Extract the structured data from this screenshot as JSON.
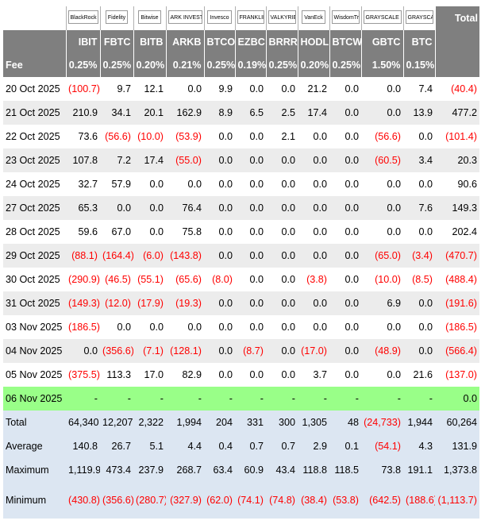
{
  "header": {
    "total_label": "Total",
    "fee_label": "Fee",
    "issuers": [
      {
        "logo": "BlackRock",
        "ticker": "IBIT",
        "fee": "0.25%"
      },
      {
        "logo": "Fidelity",
        "ticker": "FBTC",
        "fee": "0.25%"
      },
      {
        "logo": "Bitwise",
        "ticker": "BITB",
        "fee": "0.20%"
      },
      {
        "logo": "ARK INVEST",
        "ticker": "ARKB",
        "fee": "0.21%"
      },
      {
        "logo": "Invesco",
        "ticker": "BTCO",
        "fee": "0.25%"
      },
      {
        "logo": "FRANKLIN TEMPLETON",
        "ticker": "EZBC",
        "fee": "0.19%"
      },
      {
        "logo": "VALKYRIE",
        "ticker": "BRRR",
        "fee": "0.25%"
      },
      {
        "logo": "VanEck",
        "ticker": "HODL",
        "fee": "0.20%"
      },
      {
        "logo": "WisdomTree",
        "ticker": "BTCW",
        "fee": "0.25%"
      },
      {
        "logo": "GRAYSCALE",
        "ticker": "GBTC",
        "fee": "1.50%"
      },
      {
        "logo": "GRAYSCALE",
        "ticker": "BTC",
        "fee": "0.15%"
      }
    ]
  },
  "rows": [
    {
      "date": "20 Oct 2025",
      "values": [
        "(100.7)",
        "9.7",
        "12.1",
        "0.0",
        "9.9",
        "0.0",
        "0.0",
        "21.2",
        "0.0",
        "0.0",
        "7.4",
        "(40.4)"
      ]
    },
    {
      "date": "21 Oct 2025",
      "values": [
        "210.9",
        "34.1",
        "20.1",
        "162.9",
        "8.9",
        "6.5",
        "2.5",
        "17.4",
        "0.0",
        "0.0",
        "13.9",
        "477.2"
      ]
    },
    {
      "date": "22 Oct 2025",
      "values": [
        "73.6",
        "(56.6)",
        "(10.0)",
        "(53.9)",
        "0.0",
        "0.0",
        "2.1",
        "0.0",
        "0.0",
        "(56.6)",
        "0.0",
        "(101.4)"
      ]
    },
    {
      "date": "23 Oct 2025",
      "values": [
        "107.8",
        "7.2",
        "17.4",
        "(55.0)",
        "0.0",
        "0.0",
        "0.0",
        "0.0",
        "0.0",
        "(60.5)",
        "3.4",
        "20.3"
      ]
    },
    {
      "date": "24 Oct 2025",
      "values": [
        "32.7",
        "57.9",
        "0.0",
        "0.0",
        "0.0",
        "0.0",
        "0.0",
        "0.0",
        "0.0",
        "0.0",
        "0.0",
        "90.6"
      ]
    },
    {
      "date": "27 Oct 2025",
      "values": [
        "65.3",
        "0.0",
        "0.0",
        "76.4",
        "0.0",
        "0.0",
        "0.0",
        "0.0",
        "0.0",
        "0.0",
        "7.6",
        "149.3"
      ]
    },
    {
      "date": "28 Oct 2025",
      "values": [
        "59.6",
        "67.0",
        "0.0",
        "75.8",
        "0.0",
        "0.0",
        "0.0",
        "0.0",
        "0.0",
        "0.0",
        "0.0",
        "202.4"
      ]
    },
    {
      "date": "29 Oct 2025",
      "values": [
        "(88.1)",
        "(164.4)",
        "(6.0)",
        "(143.8)",
        "0.0",
        "0.0",
        "0.0",
        "0.0",
        "0.0",
        "(65.0)",
        "(3.4)",
        "(470.7)"
      ]
    },
    {
      "date": "30 Oct 2025",
      "values": [
        "(290.9)",
        "(46.5)",
        "(55.1)",
        "(65.6)",
        "(8.0)",
        "0.0",
        "0.0",
        "(3.8)",
        "0.0",
        "(10.0)",
        "(8.5)",
        "(488.4)"
      ]
    },
    {
      "date": "31 Oct 2025",
      "values": [
        "(149.3)",
        "(12.0)",
        "(17.9)",
        "(19.3)",
        "0.0",
        "0.0",
        "0.0",
        "0.0",
        "0.0",
        "6.9",
        "0.0",
        "(191.6)"
      ]
    },
    {
      "date": "03 Nov 2025",
      "values": [
        "(186.5)",
        "0.0",
        "0.0",
        "0.0",
        "0.0",
        "0.0",
        "0.0",
        "0.0",
        "0.0",
        "0.0",
        "0.0",
        "(186.5)"
      ]
    },
    {
      "date": "04 Nov 2025",
      "values": [
        "0.0",
        "(356.6)",
        "(7.1)",
        "(128.1)",
        "0.0",
        "(8.7)",
        "0.0",
        "(17.0)",
        "0.0",
        "(48.9)",
        "0.0",
        "(566.4)"
      ]
    },
    {
      "date": "05 Nov 2025",
      "values": [
        "(375.5)",
        "113.3",
        "17.0",
        "82.9",
        "0.0",
        "0.0",
        "0.0",
        "3.7",
        "0.0",
        "0.0",
        "21.6",
        "(137.0)"
      ]
    },
    {
      "date": "06 Nov 2025",
      "today": true,
      "values": [
        "-",
        "-",
        "-",
        "-",
        "-",
        "-",
        "-",
        "-",
        "-",
        "-",
        "-",
        "0.0"
      ]
    }
  ],
  "summary": [
    {
      "label": "Total",
      "values": [
        "64,340",
        "12,207",
        "2,322",
        "1,994",
        "204",
        "331",
        "300",
        "1,305",
        "48",
        "(24,733)",
        "1,944",
        "60,264"
      ]
    },
    {
      "label": "Average",
      "values": [
        "140.8",
        "26.7",
        "5.1",
        "4.4",
        "0.4",
        "0.7",
        "0.7",
        "2.9",
        "0.1",
        "(54.1)",
        "4.3",
        "131.9"
      ]
    },
    {
      "label": "Maximum",
      "values": [
        "1,119.9",
        "473.4",
        "237.9",
        "268.7",
        "63.4",
        "60.9",
        "43.4",
        "118.8",
        "118.5",
        "73.8",
        "191.1",
        "1,373.8"
      ]
    },
    {
      "label": "Minimum",
      "values": [
        "(430.8)",
        "(356.6)",
        "(280.7)",
        "(327.9)",
        "(62.0)",
        "(74.1)",
        "(74.8)",
        "(38.4)",
        "(53.8)",
        "(642.5)",
        "(188.6)",
        "(1,113.7)"
      ]
    }
  ]
}
